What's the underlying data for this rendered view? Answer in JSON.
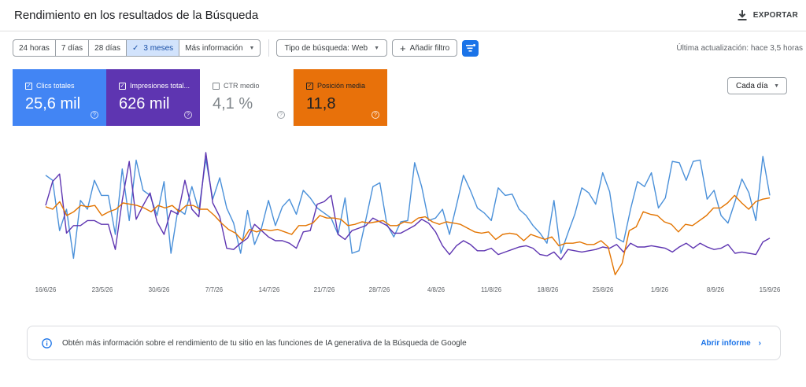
{
  "header": {
    "title": "Rendimiento en los resultados de la Búsqueda",
    "export_label": "EXPORTAR"
  },
  "filters": {
    "ranges": [
      "24 horas",
      "7 días",
      "28 días",
      "3 meses"
    ],
    "active_range": "3 meses",
    "more_info": "Más información",
    "search_type": "Tipo de búsqueda: Web",
    "add_filter": "Añadir filtro",
    "last_update": "Última actualización: hace 3,5 horas"
  },
  "metrics": {
    "clicks": {
      "label": "Clics totales",
      "value": "25,6 mil",
      "checked": true,
      "color": "#4285f4"
    },
    "impressions": {
      "label": "Impresiones total...",
      "value": "626 mil",
      "checked": true,
      "color": "#5e35b1"
    },
    "ctr": {
      "label": "CTR medio",
      "value": "4,1 %",
      "checked": false,
      "color": "#00897b"
    },
    "position": {
      "label": "Posición media",
      "value": "11,8",
      "checked": true,
      "color": "#e8710a"
    }
  },
  "granularity": "Cada día",
  "chart_data": {
    "type": "line",
    "x_ticks": [
      "16/6/26",
      "23/5/26",
      "30/6/26",
      "7/7/26",
      "14/7/26",
      "21/7/26",
      "28/7/26",
      "4/8/26",
      "11/8/26",
      "18/8/26",
      "25/8/26",
      "1/9/26",
      "8/9/26",
      "15/9/26"
    ],
    "series": [
      {
        "name": "Clics totales",
        "color": "#4a90d9",
        "values": [
          0.82,
          0.78,
          0.38,
          0.55,
          0.16,
          0.62,
          0.55,
          0.78,
          0.66,
          0.66,
          0.35,
          0.87,
          0.46,
          0.94,
          0.7,
          0.66,
          0.5,
          0.77,
          0.2,
          0.55,
          0.51,
          0.73,
          0.54,
          0.95,
          0.63,
          0.8,
          0.56,
          0.44,
          0.2,
          0.54,
          0.27,
          0.4,
          0.62,
          0.42,
          0.57,
          0.63,
          0.51,
          0.7,
          0.64,
          0.56,
          0.52,
          0.48,
          0.35,
          0.64,
          0.2,
          0.22,
          0.47,
          0.73,
          0.76,
          0.43,
          0.33,
          0.45,
          0.46,
          0.92,
          0.73,
          0.46,
          0.48,
          0.55,
          0.35,
          0.58,
          0.82,
          0.7,
          0.56,
          0.52,
          0.46,
          0.72,
          0.66,
          0.67,
          0.55,
          0.5,
          0.42,
          0.36,
          0.28,
          0.62,
          0.2,
          0.36,
          0.51,
          0.72,
          0.68,
          0.59,
          0.84,
          0.69,
          0.32,
          0.29,
          0.55,
          0.77,
          0.73,
          0.84,
          0.56,
          0.64,
          0.93,
          0.92,
          0.78,
          0.93,
          0.94,
          0.63,
          0.7,
          0.5,
          0.44,
          0.61,
          0.79,
          0.68,
          0.46,
          0.97,
          0.66
        ]
      },
      {
        "name": "Impresiones totales",
        "color": "#5e35b1",
        "values": [
          0.58,
          0.77,
          0.83,
          0.36,
          0.42,
          0.42,
          0.46,
          0.46,
          0.43,
          0.43,
          0.23,
          0.62,
          0.93,
          0.47,
          0.58,
          0.68,
          0.45,
          0.35,
          0.54,
          0.51,
          0.78,
          0.55,
          0.49,
          1.0,
          0.6,
          0.49,
          0.24,
          0.23,
          0.28,
          0.32,
          0.43,
          0.38,
          0.33,
          0.3,
          0.3,
          0.28,
          0.24,
          0.37,
          0.38,
          0.59,
          0.61,
          0.66,
          0.35,
          0.31,
          0.38,
          0.4,
          0.42,
          0.48,
          0.45,
          0.42,
          0.36,
          0.36,
          0.39,
          0.42,
          0.47,
          0.44,
          0.37,
          0.26,
          0.19,
          0.26,
          0.3,
          0.27,
          0.22,
          0.22,
          0.24,
          0.19,
          0.21,
          0.23,
          0.25,
          0.26,
          0.24,
          0.19,
          0.18,
          0.21,
          0.15,
          0.23,
          0.22,
          0.21,
          0.22,
          0.23,
          0.25,
          0.24,
          0.27,
          0.21,
          0.28,
          0.25,
          0.25,
          0.26,
          0.25,
          0.24,
          0.21,
          0.25,
          0.28,
          0.24,
          0.28,
          0.25,
          0.23,
          0.24,
          0.27,
          0.2,
          0.21,
          0.2,
          0.19,
          0.29,
          0.32
        ]
      },
      {
        "name": "Posición media",
        "color": "#e37400",
        "values": [
          0.57,
          0.55,
          0.61,
          0.5,
          0.53,
          0.58,
          0.57,
          0.58,
          0.5,
          0.53,
          0.55,
          0.6,
          0.59,
          0.58,
          0.56,
          0.53,
          0.58,
          0.56,
          0.58,
          0.53,
          0.58,
          0.58,
          0.55,
          0.55,
          0.5,
          0.44,
          0.39,
          0.36,
          0.3,
          0.39,
          0.37,
          0.39,
          0.38,
          0.39,
          0.37,
          0.35,
          0.42,
          0.42,
          0.44,
          0.5,
          0.48,
          0.48,
          0.47,
          0.42,
          0.43,
          0.45,
          0.44,
          0.45,
          0.46,
          0.42,
          0.42,
          0.45,
          0.44,
          0.48,
          0.49,
          0.45,
          0.43,
          0.45,
          0.44,
          0.43,
          0.4,
          0.37,
          0.36,
          0.37,
          0.31,
          0.35,
          0.36,
          0.35,
          0.3,
          0.35,
          0.33,
          0.31,
          0.33,
          0.26,
          0.28,
          0.28,
          0.29,
          0.27,
          0.27,
          0.3,
          0.25,
          0.03,
          0.12,
          0.38,
          0.41,
          0.53,
          0.51,
          0.5,
          0.45,
          0.43,
          0.37,
          0.43,
          0.42,
          0.46,
          0.5,
          0.56,
          0.56,
          0.6,
          0.66,
          0.6,
          0.55,
          0.61,
          0.63,
          0.64
        ]
      }
    ],
    "grid": false,
    "legend": "none"
  },
  "banner": {
    "message": "Obtén más información sobre el rendimiento de tu sitio en las funciones de IA generativa de la Búsqueda de Google",
    "cta": "Abrir informe"
  }
}
